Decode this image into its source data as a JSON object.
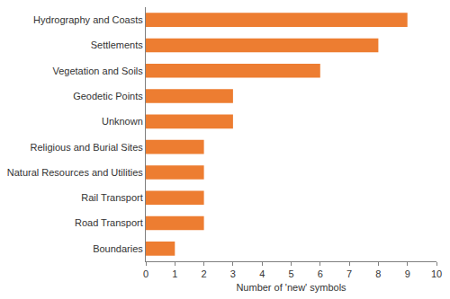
{
  "chart_data": {
    "type": "bar",
    "orientation": "horizontal",
    "categories": [
      "Hydrography and Coasts",
      "Settlements",
      "Vegetation and Soils",
      "Geodetic Points",
      "Unknown",
      "Religious and Burial Sites",
      "Natural Resources and Utilities",
      "Rail Transport",
      "Road Transport",
      "Boundaries"
    ],
    "values": [
      9,
      8,
      6,
      3,
      3,
      2,
      2,
      2,
      2,
      1
    ],
    "color": "#ed7d31",
    "xlabel": "Number of 'new' symbols",
    "xlim": [
      0,
      10
    ],
    "xticks": [
      0,
      1,
      2,
      3,
      4,
      5,
      6,
      7,
      8,
      9,
      10
    ],
    "grid": false
  }
}
